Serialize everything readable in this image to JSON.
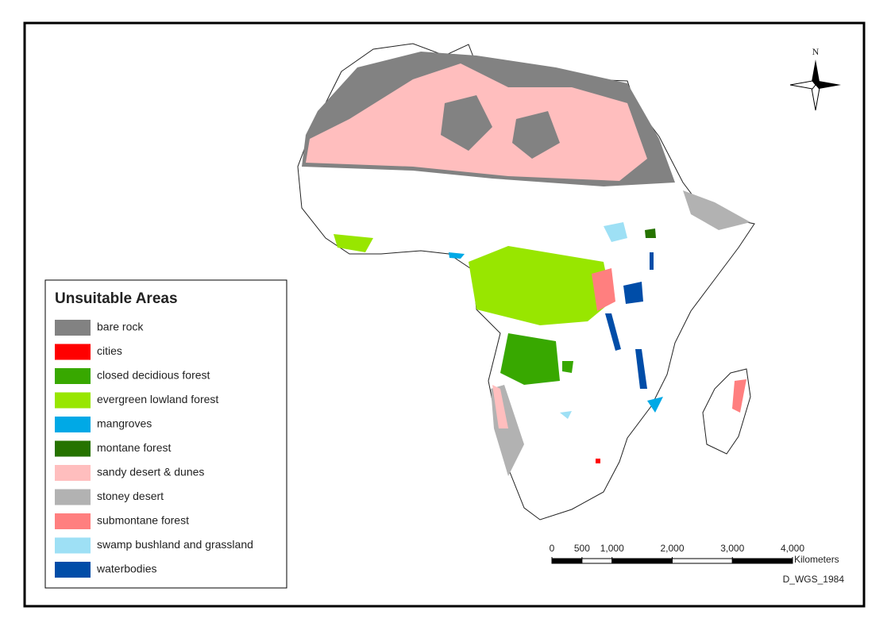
{
  "legend": {
    "title": "Unsuitable Areas",
    "items": [
      {
        "label": "bare rock",
        "color": "#828282"
      },
      {
        "label": "cities",
        "color": "#ff0000"
      },
      {
        "label": "closed decidious forest",
        "color": "#38a800"
      },
      {
        "label": "evergreen lowland forest",
        "color": "#98e600"
      },
      {
        "label": "mangroves",
        "color": "#00a9e6"
      },
      {
        "label": "montane forest",
        "color": "#267300"
      },
      {
        "label": "sandy desert & dunes",
        "color": "#ffbebe"
      },
      {
        "label": "stoney desert",
        "color": "#b2b2b2"
      },
      {
        "label": "submontane forest",
        "color": "#ff7f7f"
      },
      {
        "label": "swamp bushland and grassland",
        "color": "#9ee0f5"
      },
      {
        "label": "waterbodies",
        "color": "#004da8"
      }
    ]
  },
  "scale_bar": {
    "ticks": [
      0,
      500,
      {
        "value": 1000,
        "label": "1,000"
      },
      {
        "value": 2000,
        "label": "2,000"
      },
      {
        "value": 3000,
        "label": "3,000"
      },
      {
        "value": 4000,
        "label": "4,000"
      }
    ],
    "unit": "Kilometers"
  },
  "north_arrow": "N",
  "datum": "D_WGS_1984"
}
